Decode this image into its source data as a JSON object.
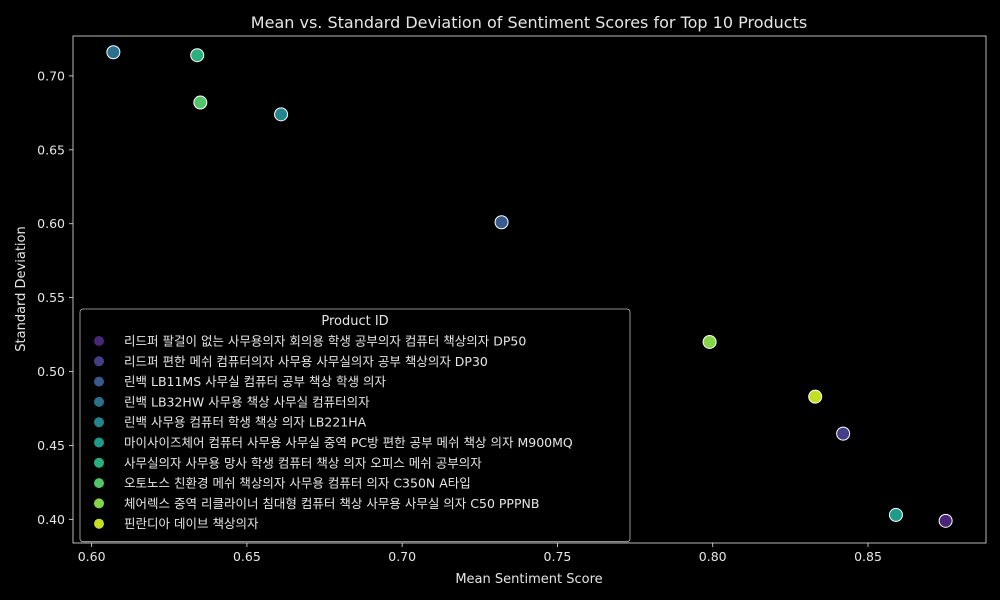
{
  "chart_data": {
    "type": "scatter",
    "title": "Mean vs. Standard Deviation of Sentiment Scores for Top 10 Products",
    "xlabel": "Mean Sentiment Score",
    "ylabel": "Standard Deviation",
    "xlim": [
      0.594,
      0.888
    ],
    "ylim": [
      0.384,
      0.727
    ],
    "xticks": [
      0.6,
      0.65,
      0.7,
      0.75,
      0.8,
      0.85
    ],
    "xtick_labels": [
      "0.60",
      "0.65",
      "0.70",
      "0.75",
      "0.80",
      "0.85"
    ],
    "yticks": [
      0.4,
      0.45,
      0.5,
      0.55,
      0.6,
      0.65,
      0.7
    ],
    "ytick_labels": [
      "0.40",
      "0.45",
      "0.50",
      "0.55",
      "0.60",
      "0.65",
      "0.70"
    ],
    "grid": false,
    "legend": {
      "title": "Product ID",
      "placement": "bottom-left"
    },
    "series": [
      {
        "name": "리드퍼 팔걸이 없는 사무용의자 회의용 학생 공부의자 컴퓨터 책상의자 DP50",
        "color": "#482677",
        "x": [
          0.875
        ],
        "y": [
          0.399
        ]
      },
      {
        "name": "리드퍼 편한 메쉬 컴퓨터의자 사무용 사무실의자 공부 책상의자 DP30",
        "color": "#433e85",
        "x": [
          0.842
        ],
        "y": [
          0.458
        ]
      },
      {
        "name": "린백 LB11MS 사무실 컴퓨터 공부 책상 학생 의자",
        "color": "#38598c",
        "x": [
          0.732
        ],
        "y": [
          0.601
        ]
      },
      {
        "name": "린백 LB32HW 사무용 책상 사무실 컴퓨터의자",
        "color": "#2d708e",
        "x": [
          0.607
        ],
        "y": [
          0.716
        ]
      },
      {
        "name": "린백 사무용 컴퓨터 학생 책상 의자 LB221HA",
        "color": "#25858e",
        "x": [
          0.661
        ],
        "y": [
          0.674
        ]
      },
      {
        "name": "마이사이즈체어 컴퓨터 사무용 사무실 중역 PC방 편한 공부 메쉬 책상 의자 M900MQ",
        "color": "#1e9b8a",
        "x": [
          0.859
        ],
        "y": [
          0.403
        ]
      },
      {
        "name": "사무실의자 사무용 망사 학생 컴퓨터 책상 의자 오피스 메쉬 공부의자",
        "color": "#2ab07f",
        "x": [
          0.634
        ],
        "y": [
          0.714
        ]
      },
      {
        "name": "오토노스 친환경 메쉬 책상의자 사무용 컴퓨터 의자 C350N A타입",
        "color": "#52c569",
        "x": [
          0.635
        ],
        "y": [
          0.682
        ]
      },
      {
        "name": "체어렉스 중역 리클라이너 침대형 컴퓨터 책상 사무용 사무실 의자 C50 PPPNB",
        "color": "#86d549",
        "x": [
          0.799
        ],
        "y": [
          0.52
        ]
      },
      {
        "name": "핀란디아 데이브 책상의자",
        "color": "#c2df23",
        "x": [
          0.833
        ],
        "y": [
          0.483
        ]
      }
    ]
  }
}
